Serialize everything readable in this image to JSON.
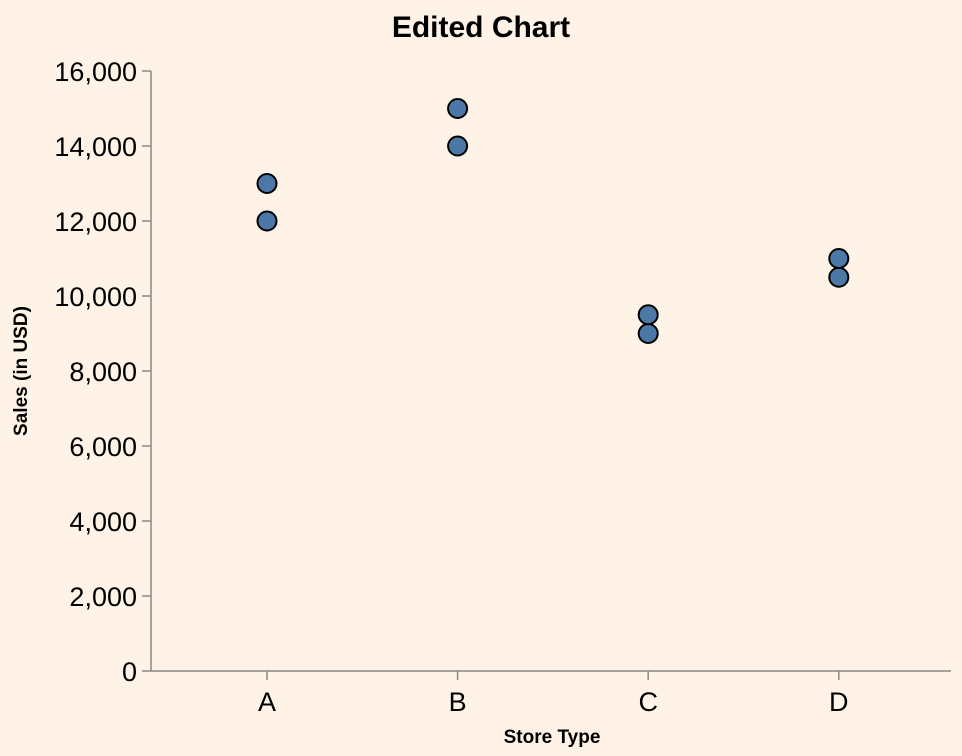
{
  "colors": {
    "background": "#fef3e6",
    "point_fill": "#4c78a8",
    "point_stroke": "#000000",
    "axis": "#888888"
  },
  "chart_data": {
    "type": "scatter",
    "title": "Edited Chart",
    "xlabel": "Store Type",
    "ylabel": "Sales (in USD)",
    "categories": [
      "A",
      "B",
      "C",
      "D"
    ],
    "ylim": [
      0,
      16000
    ],
    "yticks": [
      0,
      2000,
      4000,
      6000,
      8000,
      10000,
      12000,
      14000,
      16000
    ],
    "ytick_labels": [
      "0",
      "2,000",
      "4,000",
      "6,000",
      "8,000",
      "10,000",
      "12,000",
      "14,000",
      "16,000"
    ],
    "grid": false,
    "points": [
      {
        "x": "A",
        "y": 12000
      },
      {
        "x": "A",
        "y": 13000
      },
      {
        "x": "B",
        "y": 14000
      },
      {
        "x": "B",
        "y": 15000
      },
      {
        "x": "C",
        "y": 9000
      },
      {
        "x": "C",
        "y": 9500
      },
      {
        "x": "D",
        "y": 10500
      },
      {
        "x": "D",
        "y": 11000
      }
    ]
  }
}
